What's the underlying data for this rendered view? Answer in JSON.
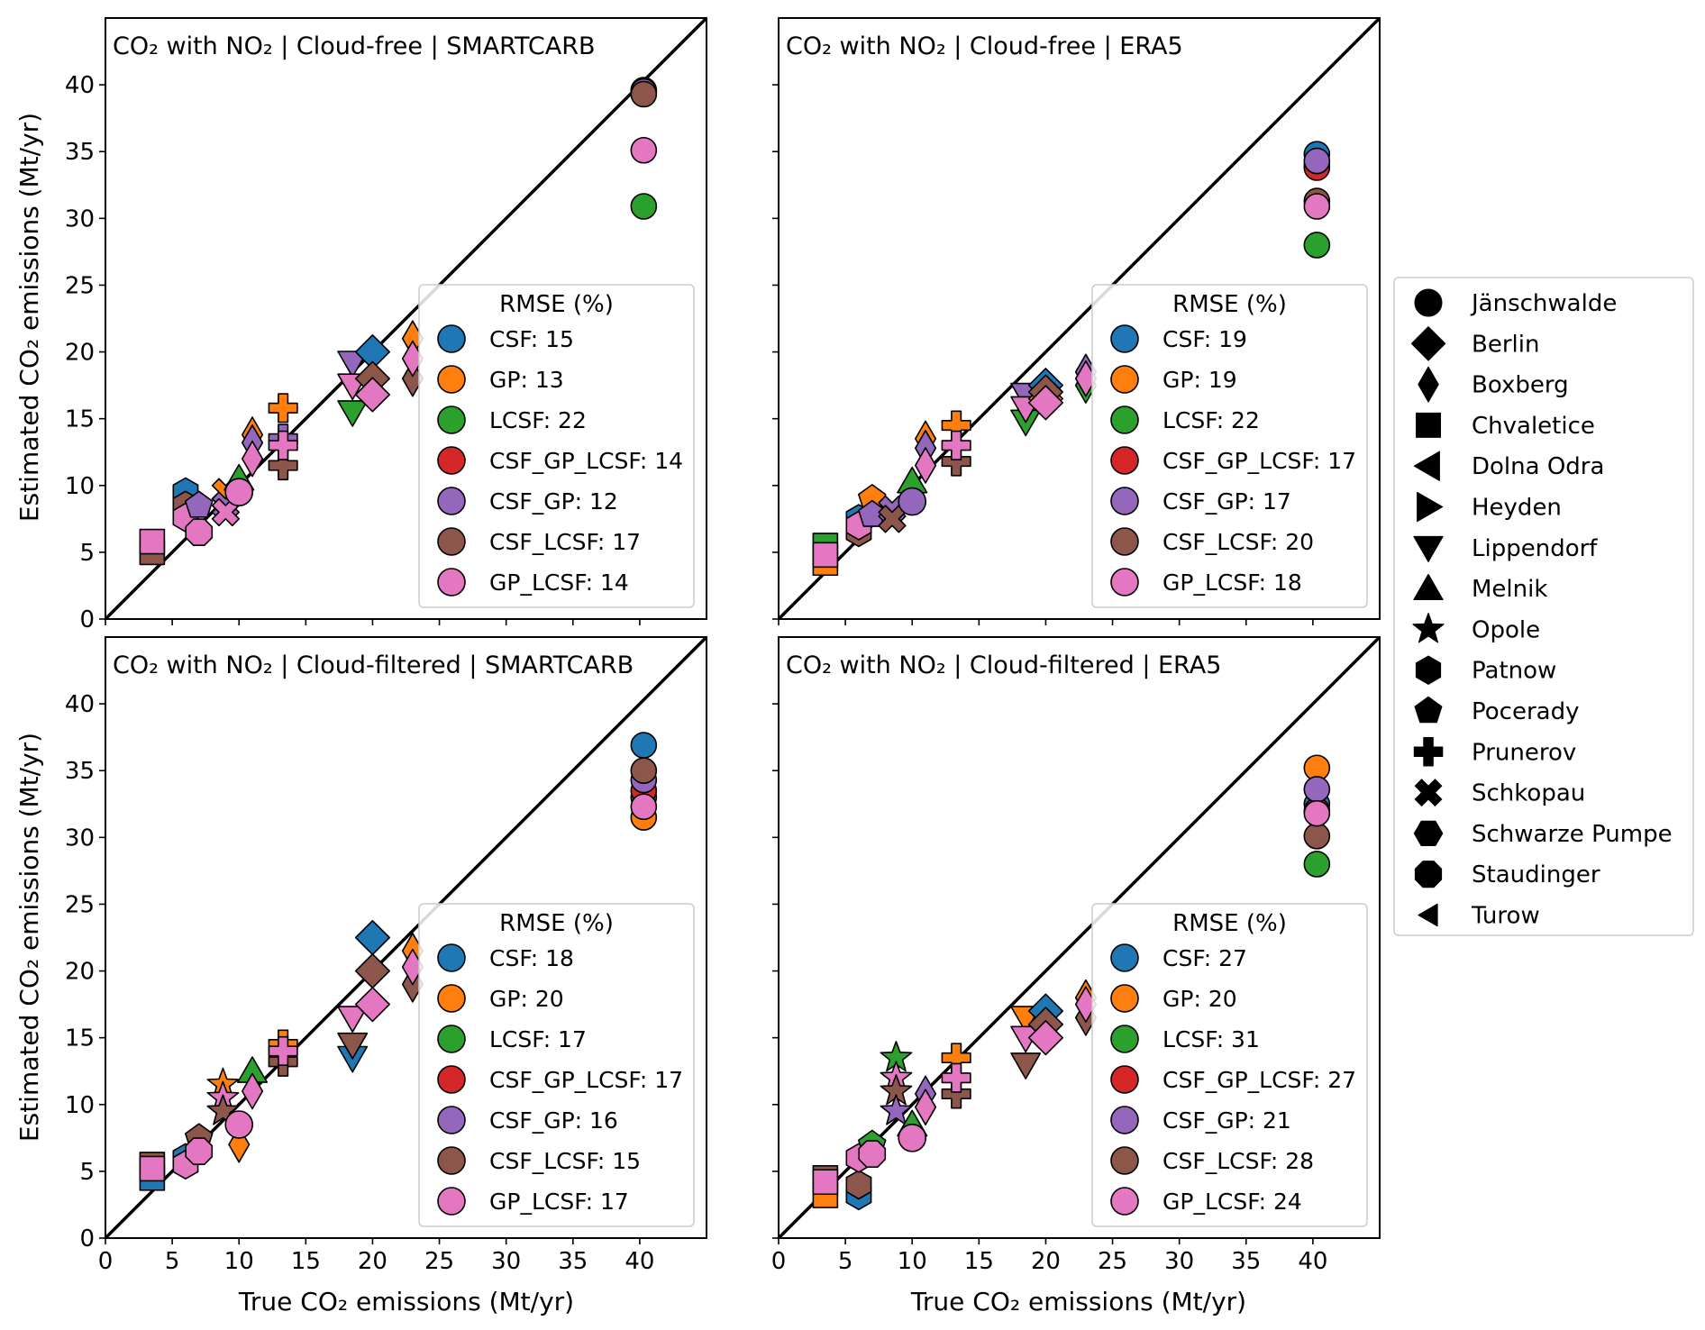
{
  "figure": {
    "xlabel": "True CO₂ emissions (Mt/yr)",
    "ylabel": "Estimated CO₂ emissions (Mt/yr)",
    "legend_title": "RMSE (%)",
    "method_colors": {
      "CSF": "#1f77b4",
      "GP": "#ff7f0e",
      "LCSF": "#2ca02c",
      "CSF_GP_LCSF": "#d62728",
      "CSF_GP": "#9467bd",
      "CSF_LCSF": "#8c564b",
      "GP_LCSF": "#e377c2"
    },
    "methods": [
      "CSF",
      "GP",
      "LCSF",
      "CSF_GP_LCSF",
      "CSF_GP",
      "CSF_LCSF",
      "GP_LCSF"
    ],
    "x_ticks": [
      0,
      5,
      10,
      15,
      20,
      25,
      30,
      35,
      40
    ],
    "y_ticks": [
      0,
      5,
      10,
      15,
      20,
      25,
      30,
      35,
      40
    ],
    "xlim": [
      0,
      45
    ],
    "ylim": [
      0,
      45
    ]
  },
  "plant_legend": [
    {
      "name": "Jänschwalde",
      "marker": "circle"
    },
    {
      "name": "Berlin",
      "marker": "diamond"
    },
    {
      "name": "Boxberg",
      "marker": "thin-diamond"
    },
    {
      "name": "Chvaletice",
      "marker": "square"
    },
    {
      "name": "Dolna Odra",
      "marker": "triangle-left"
    },
    {
      "name": "Heyden",
      "marker": "triangle-right"
    },
    {
      "name": "Lippendorf",
      "marker": "triangle-down"
    },
    {
      "name": "Melnik",
      "marker": "triangle-up"
    },
    {
      "name": "Opole",
      "marker": "star"
    },
    {
      "name": "Patnow",
      "marker": "hexagon"
    },
    {
      "name": "Pocerady",
      "marker": "pentagon"
    },
    {
      "name": "Prunerov",
      "marker": "plus"
    },
    {
      "name": "Schkopau",
      "marker": "x"
    },
    {
      "name": "Schwarze Pumpe",
      "marker": "hexagon-flat"
    },
    {
      "name": "Staudinger",
      "marker": "octagon"
    },
    {
      "name": "Turow",
      "marker": "small-triangle-left"
    }
  ],
  "chart_data": [
    {
      "type": "scatter",
      "title": "CO₂ with NO₂ | Cloud-free | SMARTCARB",
      "rmse": {
        "CSF": 15,
        "GP": 13,
        "LCSF": 22,
        "CSF_GP_LCSF": 14,
        "CSF_GP": 12,
        "CSF_LCSF": 17,
        "GP_LCSF": 14
      },
      "high_plant_x": 40.3,
      "high_plant_estimates": {
        "CSF": 39.6,
        "GP": 39.5,
        "LCSF": 30.9,
        "CSF_GP_LCSF": 39.4,
        "CSF_LCSF": 39.3,
        "CSF_GP": 39.5,
        "GP_LCSF": 35.1
      },
      "cluster_points": [
        {
          "x": 3.5,
          "y": 5.0,
          "m": "CSF_LCSF",
          "p": "square"
        },
        {
          "x": 3.5,
          "y": 5.8,
          "m": "GP_LCSF",
          "p": "square"
        },
        {
          "x": 6,
          "y": 9.5,
          "m": "CSF",
          "p": "hexagon"
        },
        {
          "x": 6,
          "y": 8.5,
          "m": "CSF_LCSF",
          "p": "hexagon"
        },
        {
          "x": 6,
          "y": 7.6,
          "m": "GP_LCSF",
          "p": "hexagon"
        },
        {
          "x": 7,
          "y": 8.5,
          "m": "CSF_GP",
          "p": "pentagon"
        },
        {
          "x": 7,
          "y": 6.5,
          "m": "GP_LCSF",
          "p": "octagon"
        },
        {
          "x": 9,
          "y": 9.5,
          "m": "GP",
          "p": "x"
        },
        {
          "x": 9,
          "y": 8.5,
          "m": "CSF_GP",
          "p": "x"
        },
        {
          "x": 9,
          "y": 8.0,
          "m": "GP_LCSF",
          "p": "x"
        },
        {
          "x": 10,
          "y": 10.5,
          "m": "LCSF",
          "p": "triangle-up"
        },
        {
          "x": 10,
          "y": 9.5,
          "m": "GP_LCSF",
          "p": "circle"
        },
        {
          "x": 11,
          "y": 13.8,
          "m": "GP",
          "p": "thin-diamond"
        },
        {
          "x": 11,
          "y": 13.2,
          "m": "CSF_GP",
          "p": "thin-diamond"
        },
        {
          "x": 11,
          "y": 12.0,
          "m": "GP_LCSF",
          "p": "thin-diamond"
        },
        {
          "x": 13.3,
          "y": 15.8,
          "m": "GP",
          "p": "plus"
        },
        {
          "x": 13.3,
          "y": 13.5,
          "m": "CSF_GP",
          "p": "plus"
        },
        {
          "x": 13.3,
          "y": 11.5,
          "m": "CSF_LCSF",
          "p": "plus"
        },
        {
          "x": 13.3,
          "y": 13.0,
          "m": "GP_LCSF",
          "p": "plus"
        },
        {
          "x": 18.5,
          "y": 15.5,
          "m": "LCSF",
          "p": "triangle-down"
        },
        {
          "x": 18.5,
          "y": 19.2,
          "m": "CSF_GP",
          "p": "triangle-down"
        },
        {
          "x": 18.5,
          "y": 17.5,
          "m": "GP_LCSF",
          "p": "triangle-down"
        },
        {
          "x": 20,
          "y": 20.0,
          "m": "CSF",
          "p": "diamond"
        },
        {
          "x": 20,
          "y": 18.0,
          "m": "CSF_LCSF",
          "p": "diamond"
        },
        {
          "x": 20,
          "y": 16.8,
          "m": "GP_LCSF",
          "p": "diamond"
        },
        {
          "x": 23,
          "y": 21.0,
          "m": "GP",
          "p": "thin-diamond"
        },
        {
          "x": 23,
          "y": 18.0,
          "m": "CSF_LCSF",
          "p": "thin-diamond"
        },
        {
          "x": 23,
          "y": 19.5,
          "m": "GP_LCSF",
          "p": "thin-diamond"
        }
      ]
    },
    {
      "type": "scatter",
      "title": "CO₂ with NO₂ | Cloud-free | ERA5",
      "rmse": {
        "CSF": 19,
        "GP": 19,
        "LCSF": 22,
        "CSF_GP_LCSF": 17,
        "CSF_GP": 17,
        "CSF_LCSF": 20,
        "GP_LCSF": 18
      },
      "high_plant_x": 40.3,
      "high_plant_estimates": {
        "CSF": 34.8,
        "GP": 34.0,
        "LCSF": 28.0,
        "CSF_GP_LCSF": 33.8,
        "CSF_LCSF": 31.3,
        "CSF_GP": 34.3,
        "GP_LCSF": 30.9
      },
      "cluster_points": [
        {
          "x": 3.5,
          "y": 4.2,
          "m": "GP",
          "p": "square"
        },
        {
          "x": 3.5,
          "y": 5.5,
          "m": "LCSF",
          "p": "square"
        },
        {
          "x": 3.5,
          "y": 4.8,
          "m": "GP_LCSF",
          "p": "square"
        },
        {
          "x": 6,
          "y": 7.5,
          "m": "CSF",
          "p": "hexagon"
        },
        {
          "x": 6,
          "y": 6.5,
          "m": "CSF_LCSF",
          "p": "hexagon"
        },
        {
          "x": 6,
          "y": 7.0,
          "m": "GP_LCSF",
          "p": "hexagon"
        },
        {
          "x": 7,
          "y": 9.0,
          "m": "GP",
          "p": "pentagon"
        },
        {
          "x": 7,
          "y": 7.8,
          "m": "CSF_GP",
          "p": "pentagon"
        },
        {
          "x": 8.5,
          "y": 8.2,
          "m": "CSF_GP",
          "p": "x"
        },
        {
          "x": 8.5,
          "y": 7.5,
          "m": "CSF_LCSF",
          "p": "x"
        },
        {
          "x": 10,
          "y": 10.3,
          "m": "LCSF",
          "p": "triangle-up"
        },
        {
          "x": 10,
          "y": 8.8,
          "m": "CSF_GP",
          "p": "circle"
        },
        {
          "x": 11,
          "y": 13.5,
          "m": "GP",
          "p": "thin-diamond"
        },
        {
          "x": 11,
          "y": 12.8,
          "m": "CSF_GP",
          "p": "thin-diamond"
        },
        {
          "x": 11,
          "y": 11.5,
          "m": "GP_LCSF",
          "p": "thin-diamond"
        },
        {
          "x": 13.3,
          "y": 14.5,
          "m": "GP",
          "p": "plus"
        },
        {
          "x": 13.3,
          "y": 11.8,
          "m": "CSF_LCSF",
          "p": "plus"
        },
        {
          "x": 13.3,
          "y": 13.0,
          "m": "GP_LCSF",
          "p": "plus"
        },
        {
          "x": 18.5,
          "y": 14.8,
          "m": "LCSF",
          "p": "triangle-down"
        },
        {
          "x": 18.5,
          "y": 16.8,
          "m": "CSF_GP",
          "p": "triangle-down"
        },
        {
          "x": 18.5,
          "y": 15.8,
          "m": "GP_LCSF",
          "p": "triangle-down"
        },
        {
          "x": 20,
          "y": 17.5,
          "m": "CSF",
          "p": "diamond"
        },
        {
          "x": 20,
          "y": 16.5,
          "m": "GP",
          "p": "diamond"
        },
        {
          "x": 20,
          "y": 17.0,
          "m": "CSF_LCSF",
          "p": "diamond"
        },
        {
          "x": 20,
          "y": 16.2,
          "m": "GP_LCSF",
          "p": "diamond"
        },
        {
          "x": 23,
          "y": 17.5,
          "m": "LCSF",
          "p": "thin-diamond"
        },
        {
          "x": 23,
          "y": 18.5,
          "m": "CSF_GP",
          "p": "thin-diamond"
        },
        {
          "x": 23,
          "y": 18.0,
          "m": "GP_LCSF",
          "p": "thin-diamond"
        }
      ]
    },
    {
      "type": "scatter",
      "title": "CO₂ with NO₂ | Cloud-filtered | SMARTCARB",
      "rmse": {
        "CSF": 18,
        "GP": 20,
        "LCSF": 17,
        "CSF_GP_LCSF": 17,
        "CSF_GP": 16,
        "CSF_LCSF": 15,
        "GP_LCSF": 17
      },
      "high_plant_x": 40.3,
      "high_plant_estimates": {
        "CSF": 36.9,
        "GP": 31.5,
        "LCSF": 33.0,
        "CSF_GP_LCSF": 33.5,
        "CSF_GP": 34.3,
        "CSF_LCSF": 35.0,
        "GP_LCSF": 32.3
      },
      "cluster_points": [
        {
          "x": 3.5,
          "y": 4.5,
          "m": "CSF",
          "p": "square"
        },
        {
          "x": 3.5,
          "y": 5.5,
          "m": "CSF_LCSF",
          "p": "square"
        },
        {
          "x": 3.5,
          "y": 5.2,
          "m": "GP_LCSF",
          "p": "square"
        },
        {
          "x": 6,
          "y": 6.0,
          "m": "CSF",
          "p": "hexagon"
        },
        {
          "x": 6,
          "y": 5.5,
          "m": "GP_LCSF",
          "p": "hexagon"
        },
        {
          "x": 7,
          "y": 7.5,
          "m": "CSF_LCSF",
          "p": "pentagon"
        },
        {
          "x": 7,
          "y": 6.5,
          "m": "GP_LCSF",
          "p": "octagon"
        },
        {
          "x": 8.8,
          "y": 11.5,
          "m": "GP",
          "p": "star"
        },
        {
          "x": 8.8,
          "y": 10.5,
          "m": "GP_LCSF",
          "p": "star"
        },
        {
          "x": 8.8,
          "y": 9.5,
          "m": "CSF_LCSF",
          "p": "star"
        },
        {
          "x": 10,
          "y": 7.0,
          "m": "GP",
          "p": "thin-diamond"
        },
        {
          "x": 10,
          "y": 8.5,
          "m": "GP_LCSF",
          "p": "circle"
        },
        {
          "x": 11,
          "y": 12.5,
          "m": "LCSF",
          "p": "triangle-up"
        },
        {
          "x": 11,
          "y": 11.0,
          "m": "GP_LCSF",
          "p": "thin-diamond"
        },
        {
          "x": 13.3,
          "y": 14.5,
          "m": "GP",
          "p": "plus"
        },
        {
          "x": 13.3,
          "y": 13.2,
          "m": "CSF_LCSF",
          "p": "plus"
        },
        {
          "x": 13.3,
          "y": 14.0,
          "m": "GP_LCSF",
          "p": "plus"
        },
        {
          "x": 18.5,
          "y": 13.5,
          "m": "CSF",
          "p": "triangle-down"
        },
        {
          "x": 18.5,
          "y": 14.5,
          "m": "CSF_LCSF",
          "p": "triangle-down"
        },
        {
          "x": 18.5,
          "y": 16.5,
          "m": "GP_LCSF",
          "p": "triangle-down"
        },
        {
          "x": 20,
          "y": 22.5,
          "m": "CSF",
          "p": "diamond"
        },
        {
          "x": 20,
          "y": 20.0,
          "m": "CSF_LCSF",
          "p": "diamond"
        },
        {
          "x": 20,
          "y": 17.5,
          "m": "GP_LCSF",
          "p": "diamond"
        },
        {
          "x": 23,
          "y": 21.5,
          "m": "GP",
          "p": "thin-diamond"
        },
        {
          "x": 23,
          "y": 19.0,
          "m": "CSF_LCSF",
          "p": "thin-diamond"
        },
        {
          "x": 23,
          "y": 20.3,
          "m": "GP_LCSF",
          "p": "thin-diamond"
        }
      ]
    },
    {
      "type": "scatter",
      "title": "CO₂ with NO₂ | Cloud-filtered | ERA5",
      "rmse": {
        "CSF": 27,
        "GP": 20,
        "LCSF": 31,
        "CSF_GP_LCSF": 27,
        "CSF_GP": 21,
        "CSF_LCSF": 28,
        "GP_LCSF": 24
      },
      "high_plant_x": 40.3,
      "high_plant_estimates": {
        "CSF": 32.5,
        "GP": 35.2,
        "LCSF": 28.0,
        "CSF_GP_LCSF": 32.0,
        "CSF_GP": 33.6,
        "CSF_LCSF": 30.1,
        "GP_LCSF": 31.8
      },
      "cluster_points": [
        {
          "x": 3.5,
          "y": 3.2,
          "m": "GP",
          "p": "square"
        },
        {
          "x": 3.5,
          "y": 4.5,
          "m": "CSF_LCSF",
          "p": "square"
        },
        {
          "x": 3.5,
          "y": 4.2,
          "m": "GP_LCSF",
          "p": "square"
        },
        {
          "x": 6,
          "y": 3.2,
          "m": "CSF",
          "p": "hexagon"
        },
        {
          "x": 6,
          "y": 4.0,
          "m": "CSF_LCSF",
          "p": "hexagon"
        },
        {
          "x": 6,
          "y": 6.0,
          "m": "GP_LCSF",
          "p": "hexagon"
        },
        {
          "x": 7,
          "y": 7.0,
          "m": "LCSF",
          "p": "pentagon"
        },
        {
          "x": 7,
          "y": 6.3,
          "m": "GP_LCSF",
          "p": "octagon"
        },
        {
          "x": 8.8,
          "y": 13.5,
          "m": "LCSF",
          "p": "star"
        },
        {
          "x": 8.8,
          "y": 12.0,
          "m": "GP_LCSF",
          "p": "star"
        },
        {
          "x": 8.8,
          "y": 11.0,
          "m": "CSF_LCSF",
          "p": "star"
        },
        {
          "x": 8.8,
          "y": 9.5,
          "m": "CSF_GP",
          "p": "star"
        },
        {
          "x": 10,
          "y": 8.5,
          "m": "LCSF",
          "p": "triangle-up"
        },
        {
          "x": 10,
          "y": 7.5,
          "m": "GP_LCSF",
          "p": "circle"
        },
        {
          "x": 11,
          "y": 10.8,
          "m": "CSF_GP",
          "p": "thin-diamond"
        },
        {
          "x": 11,
          "y": 9.8,
          "m": "GP_LCSF",
          "p": "thin-diamond"
        },
        {
          "x": 13.3,
          "y": 13.5,
          "m": "GP",
          "p": "plus"
        },
        {
          "x": 13.3,
          "y": 10.8,
          "m": "CSF_LCSF",
          "p": "plus"
        },
        {
          "x": 13.3,
          "y": 12.0,
          "m": "GP_LCSF",
          "p": "plus"
        },
        {
          "x": 18.5,
          "y": 16.5,
          "m": "GP",
          "p": "triangle-down"
        },
        {
          "x": 18.5,
          "y": 13.0,
          "m": "CSF_LCSF",
          "p": "triangle-down"
        },
        {
          "x": 18.5,
          "y": 15.0,
          "m": "GP_LCSF",
          "p": "triangle-down"
        },
        {
          "x": 20,
          "y": 17.0,
          "m": "CSF",
          "p": "diamond"
        },
        {
          "x": 20,
          "y": 16.0,
          "m": "CSF_LCSF",
          "p": "diamond"
        },
        {
          "x": 20,
          "y": 15.0,
          "m": "GP_LCSF",
          "p": "diamond"
        },
        {
          "x": 23,
          "y": 18.0,
          "m": "GP",
          "p": "thin-diamond"
        },
        {
          "x": 23,
          "y": 16.5,
          "m": "CSF_LCSF",
          "p": "thin-diamond"
        },
        {
          "x": 23,
          "y": 17.5,
          "m": "GP_LCSF",
          "p": "thin-diamond"
        }
      ]
    }
  ]
}
